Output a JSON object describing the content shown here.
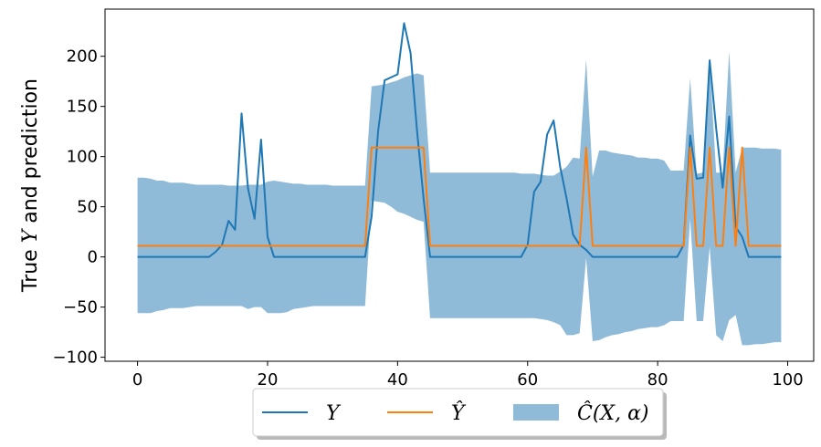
{
  "chart_data": {
    "type": "line",
    "title": "",
    "xlabel": "",
    "ylabel": "True Y and prediction",
    "xlim": [
      -5,
      104
    ],
    "ylim": [
      -104,
      247
    ],
    "x_ticks": [
      0,
      20,
      40,
      60,
      80,
      100
    ],
    "y_ticks": [
      -100,
      -50,
      0,
      50,
      100,
      150,
      200
    ],
    "x_tick_labels": [
      "0",
      "20",
      "40",
      "60",
      "80",
      "100"
    ],
    "y_tick_labels": [
      "−100",
      "−50",
      "0",
      "50",
      "100",
      "150",
      "200"
    ],
    "grid": false,
    "legend_position": "bottom-center outside",
    "series": [
      {
        "name": "Y",
        "color": "#1f77b4",
        "kind": "line",
        "x": [
          0,
          1,
          2,
          3,
          4,
          5,
          6,
          7,
          8,
          9,
          10,
          11,
          12,
          13,
          14,
          15,
          16,
          17,
          18,
          19,
          20,
          21,
          22,
          23,
          24,
          25,
          26,
          27,
          28,
          29,
          30,
          31,
          32,
          33,
          34,
          35,
          36,
          37,
          38,
          39,
          40,
          41,
          42,
          43,
          44,
          45,
          46,
          47,
          48,
          49,
          50,
          51,
          52,
          53,
          54,
          55,
          56,
          57,
          58,
          59,
          60,
          61,
          62,
          63,
          64,
          65,
          66,
          67,
          68,
          69,
          70,
          71,
          72,
          73,
          74,
          75,
          76,
          77,
          78,
          79,
          80,
          81,
          82,
          83,
          84,
          85,
          86,
          87,
          88,
          89,
          90,
          91,
          92,
          93,
          94,
          95,
          96,
          97,
          98,
          99
        ],
        "y": [
          0,
          0,
          0,
          0,
          0,
          0,
          0,
          0,
          0,
          0,
          0,
          0,
          5,
          12,
          36,
          27,
          143,
          68,
          38,
          117,
          20,
          0,
          0,
          0,
          0,
          0,
          0,
          0,
          0,
          0,
          0,
          0,
          0,
          0,
          0,
          0,
          40,
          125,
          176,
          179,
          182,
          233,
          203,
          125,
          58,
          0,
          0,
          0,
          0,
          0,
          0,
          0,
          0,
          0,
          0,
          0,
          0,
          0,
          0,
          0,
          12,
          65,
          75,
          122,
          136,
          90,
          58,
          22,
          12,
          7,
          0,
          0,
          0,
          0,
          0,
          0,
          0,
          0,
          0,
          0,
          0,
          0,
          0,
          0,
          12,
          121,
          78,
          79,
          196,
          128,
          69,
          140,
          30,
          20,
          0,
          0,
          0,
          0,
          0,
          0
        ]
      },
      {
        "name": "Ŷ",
        "color": "#ff7f0e",
        "kind": "line",
        "x": [
          0,
          35,
          36,
          44,
          45,
          68,
          69,
          70,
          84,
          85,
          86,
          87,
          88,
          89,
          90,
          91,
          92,
          93,
          94,
          99
        ],
        "y": [
          11,
          11,
          109,
          109,
          11,
          11,
          109,
          11,
          11,
          109,
          11,
          11,
          109,
          11,
          11,
          109,
          11,
          109,
          11,
          11
        ]
      },
      {
        "name": "Ĉ(X, α)",
        "color": "#1f77b4",
        "kind": "band",
        "opacity": 0.5,
        "x": [
          0,
          1,
          2,
          3,
          4,
          5,
          6,
          7,
          8,
          9,
          10,
          11,
          12,
          13,
          14,
          15,
          16,
          17,
          18,
          19,
          20,
          21,
          22,
          23,
          24,
          25,
          26,
          27,
          28,
          29,
          30,
          31,
          32,
          33,
          34,
          35,
          36,
          37,
          38,
          39,
          40,
          41,
          42,
          43,
          44,
          45,
          46,
          47,
          48,
          49,
          50,
          51,
          52,
          53,
          54,
          55,
          56,
          57,
          58,
          59,
          60,
          61,
          62,
          63,
          64,
          65,
          66,
          67,
          68,
          69,
          70,
          71,
          72,
          73,
          74,
          75,
          76,
          77,
          78,
          79,
          80,
          81,
          82,
          83,
          84,
          85,
          86,
          87,
          88,
          89,
          90,
          91,
          92,
          93,
          94,
          95,
          96,
          97,
          98,
          99
        ],
        "upper": [
          79,
          79,
          78,
          76,
          76,
          74,
          74,
          74,
          73,
          72,
          72,
          72,
          72,
          72,
          71,
          71,
          71,
          72,
          72,
          72,
          75,
          76,
          75,
          74,
          73,
          73,
          72,
          72,
          72,
          72,
          71,
          71,
          71,
          71,
          71,
          71,
          170,
          171,
          172,
          174,
          176,
          179,
          181,
          183,
          181,
          84,
          84,
          84,
          84,
          84,
          84,
          84,
          84,
          84,
          84,
          84,
          84,
          84,
          84,
          83,
          83,
          83,
          82,
          81,
          81,
          85,
          90,
          99,
          98,
          197,
          80,
          106,
          106,
          104,
          103,
          102,
          101,
          99,
          99,
          98,
          98,
          96,
          86,
          86,
          86,
          178,
          83,
          84,
          194,
          84,
          84,
          205,
          84,
          109,
          109,
          109,
          108,
          108,
          108,
          107
        ],
        "lower": [
          -56,
          -56,
          -56,
          -54,
          -53,
          -51,
          -51,
          -51,
          -50,
          -49,
          -49,
          -49,
          -49,
          -49,
          -49,
          -49,
          -49,
          -52,
          -50,
          -50,
          -56,
          -56,
          -56,
          -55,
          -52,
          -51,
          -50,
          -49,
          -49,
          -49,
          -49,
          -49,
          -49,
          -49,
          -49,
          -49,
          56,
          55,
          54,
          50,
          45,
          43,
          40,
          37,
          35,
          -61,
          -61,
          -61,
          -61,
          -61,
          -61,
          -61,
          -61,
          -61,
          -61,
          -61,
          -61,
          -61,
          -61,
          -61,
          -61,
          -61,
          -62,
          -63,
          -65,
          -68,
          -78,
          -78,
          -76,
          -1,
          -84,
          -83,
          -80,
          -78,
          -77,
          -75,
          -74,
          -72,
          -71,
          -70,
          -70,
          -68,
          -64,
          -64,
          -64,
          38,
          -64,
          -64,
          10,
          -78,
          -84,
          -63,
          -58,
          -88,
          -88,
          -87,
          -87,
          -86,
          -85,
          -85
        ]
      }
    ]
  }
}
